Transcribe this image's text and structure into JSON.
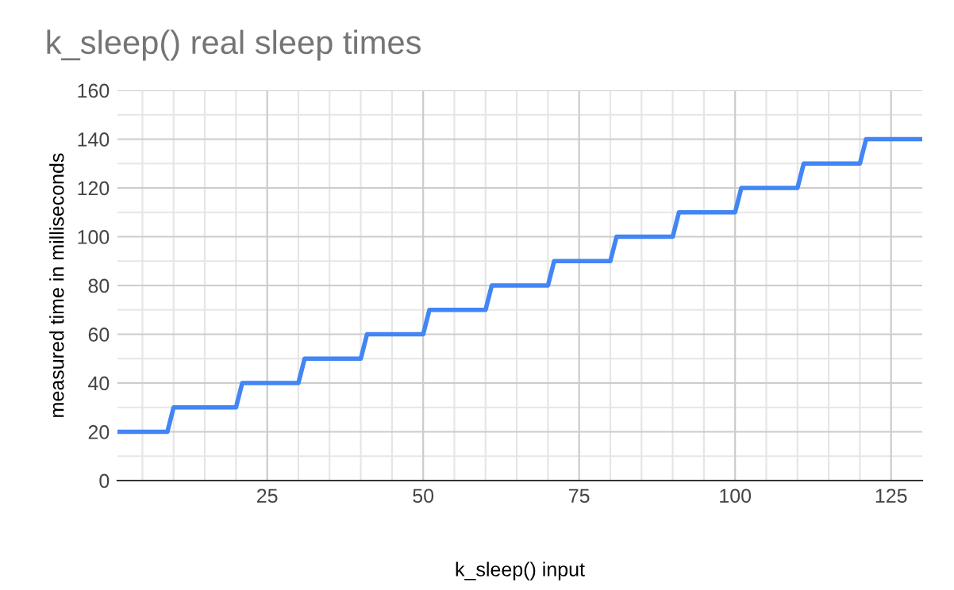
{
  "chart_data": {
    "type": "line",
    "title": "k_sleep() real sleep times",
    "xlabel": "k_sleep() input",
    "ylabel": "measured time in milliseconds",
    "series": [
      {
        "color": "#4285f4",
        "x": [
          1,
          9,
          10,
          20,
          21,
          30,
          31,
          40,
          41,
          50,
          51,
          60,
          61,
          70,
          71,
          80,
          81,
          90,
          91,
          100,
          101,
          110,
          111,
          120,
          121,
          130
        ],
        "values": [
          20,
          20,
          30,
          30,
          40,
          40,
          50,
          50,
          60,
          60,
          70,
          70,
          80,
          80,
          90,
          90,
          100,
          100,
          110,
          110,
          120,
          120,
          130,
          130,
          140,
          140
        ]
      }
    ],
    "xlim": [
      1,
      130
    ],
    "ylim": [
      0,
      160
    ],
    "xticks": [
      25,
      50,
      75,
      100,
      125
    ],
    "yticks": [
      0,
      20,
      40,
      60,
      80,
      100,
      120,
      140,
      160
    ],
    "grid": true,
    "legend": false,
    "marker": "none",
    "line_style": "solid"
  }
}
